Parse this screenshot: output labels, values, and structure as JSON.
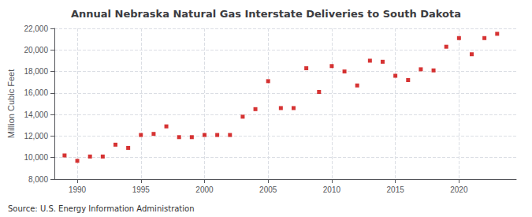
{
  "chart_data": {
    "type": "scatter",
    "title": "Annual Nebraska Natural Gas Interstate Deliveries to South Dakota",
    "ylabel": "Million Cubic Feet",
    "annotations": [
      "Source: U.S. Energy Information Administration"
    ],
    "x": [
      1989,
      1990,
      1991,
      1992,
      1993,
      1994,
      1995,
      1996,
      1997,
      1998,
      1999,
      2000,
      2001,
      2002,
      2003,
      2004,
      2005,
      2006,
      2007,
      2008,
      2009,
      2010,
      2011,
      2012,
      2013,
      2014,
      2015,
      2016,
      2017,
      2018,
      2019,
      2020,
      2021,
      2022,
      2023
    ],
    "values": [
      10200,
      9700,
      10100,
      10100,
      11200,
      10900,
      12100,
      12200,
      12900,
      11900,
      11900,
      12100,
      12100,
      12100,
      13800,
      14500,
      17100,
      14600,
      14600,
      18300,
      16100,
      18500,
      18000,
      16700,
      19000,
      18900,
      17600,
      17200,
      18200,
      18100,
      20300,
      21100,
      19600,
      21100,
      21500
    ],
    "color": "#cc0000",
    "marker": "square",
    "xlim": [
      1988.2,
      2024.5
    ],
    "xticks": [
      1990,
      1995,
      2000,
      2005,
      2010,
      2015,
      2020
    ],
    "ylim": [
      8000,
      22000
    ],
    "yticks": [
      {
        "value": 8000,
        "label": "8,000"
      },
      {
        "value": 10000,
        "label": "10,000"
      },
      {
        "value": 12000,
        "label": "12,000"
      },
      {
        "value": 14000,
        "label": "14,000"
      },
      {
        "value": 16000,
        "label": "16,000"
      },
      {
        "value": 18000,
        "label": "18,000"
      },
      {
        "value": 20000,
        "label": "20,000"
      },
      {
        "value": 22000,
        "label": "22,000"
      }
    ],
    "grid": true
  }
}
